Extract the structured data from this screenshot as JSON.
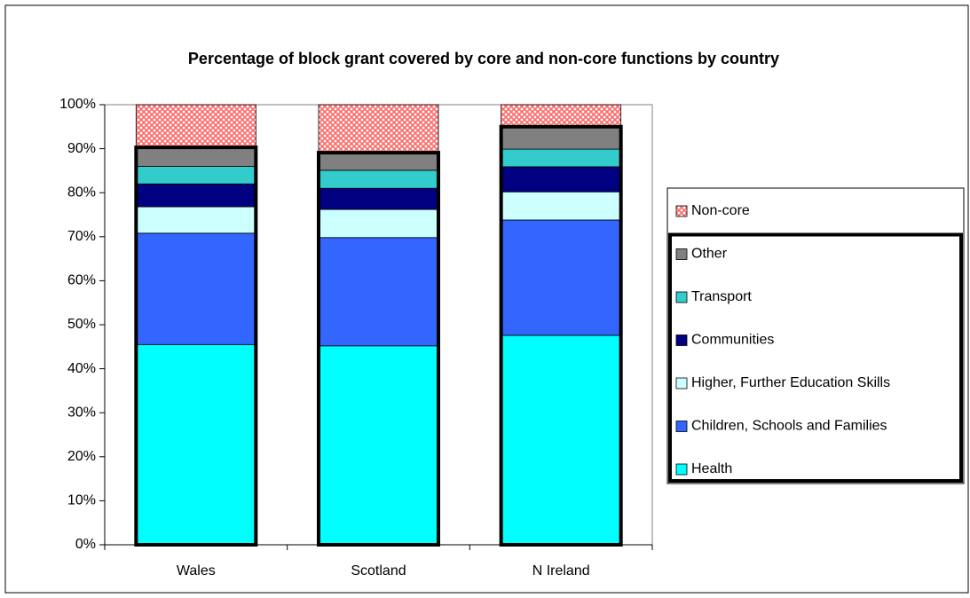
{
  "chart_data": {
    "type": "stacked_bar_percent",
    "title": "Percentage of block grant covered by core and non-core functions by country",
    "categories": [
      "Wales",
      "Scotland",
      "N Ireland"
    ],
    "series": [
      {
        "name": "Health",
        "color": "#00ffff",
        "values": [
          45.5,
          45.2,
          47.6
        ]
      },
      {
        "name": "Children, Schools and Families",
        "color": "#3366ff",
        "values": [
          25.3,
          24.6,
          26.2
        ]
      },
      {
        "name": "Higher, Further Education Skills",
        "color": "#ccffff",
        "values": [
          6.0,
          6.4,
          6.4
        ]
      },
      {
        "name": "Communities",
        "color": "#000080",
        "values": [
          5.2,
          4.8,
          5.7
        ]
      },
      {
        "name": "Transport",
        "color": "#33cccc",
        "values": [
          4.0,
          4.1,
          4.0
        ]
      },
      {
        "name": "Other",
        "color": "#808080",
        "values": [
          4.3,
          4.0,
          5.1
        ]
      },
      {
        "name": "Non-core",
        "color": "#ff6666",
        "values": [
          9.7,
          10.9,
          5.0
        ]
      }
    ],
    "ylim": [
      0,
      100
    ],
    "yticks": [
      {
        "value": 0,
        "label": "0%"
      },
      {
        "value": 10,
        "label": "10%"
      },
      {
        "value": 20,
        "label": "20%"
      },
      {
        "value": 30,
        "label": "30%"
      },
      {
        "value": 40,
        "label": "40%"
      },
      {
        "value": 50,
        "label": "50%"
      },
      {
        "value": 60,
        "label": "60%"
      },
      {
        "value": 70,
        "label": "70%"
      },
      {
        "value": 80,
        "label": "80%"
      },
      {
        "value": 90,
        "label": "90%"
      },
      {
        "value": 100,
        "label": "100%"
      }
    ],
    "legend": "right"
  }
}
